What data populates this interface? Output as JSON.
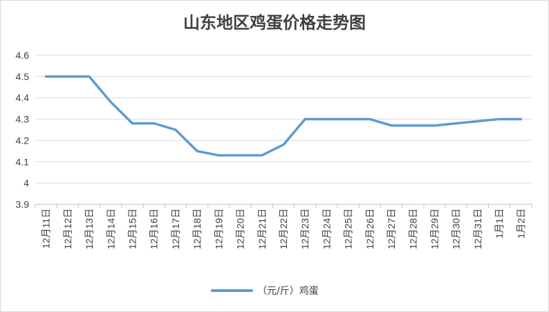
{
  "chart_data": {
    "type": "line",
    "title": "山东地区鸡蛋价格走势图",
    "xlabel": "",
    "ylabel": "",
    "categories": [
      "12月11日",
      "12月12日",
      "12月13日",
      "12月14日",
      "12月15日",
      "12月16日",
      "12月17日",
      "12月18日",
      "12月19日",
      "12月20日",
      "12月21日",
      "12月22日",
      "12月23日",
      "12月24日",
      "12月25日",
      "12月26日",
      "12月27日",
      "12月28日",
      "12月29日",
      "12月30日",
      "12月31日",
      "1月1日",
      "1月2日"
    ],
    "series": [
      {
        "name": "（元/斤）鸡蛋",
        "color": "#5b9bd5",
        "values": [
          4.5,
          4.5,
          4.5,
          4.38,
          4.28,
          4.28,
          4.25,
          4.15,
          4.13,
          4.13,
          4.13,
          4.18,
          4.3,
          4.3,
          4.3,
          4.3,
          4.27,
          4.27,
          4.27,
          4.28,
          4.29,
          4.3,
          4.3
        ]
      }
    ],
    "ylim": [
      3.9,
      4.6
    ],
    "yticks": [
      "3.9",
      "4",
      "4.1",
      "4.2",
      "4.3",
      "4.4",
      "4.5",
      "4.6"
    ],
    "grid": true,
    "legend_position": "bottom"
  }
}
